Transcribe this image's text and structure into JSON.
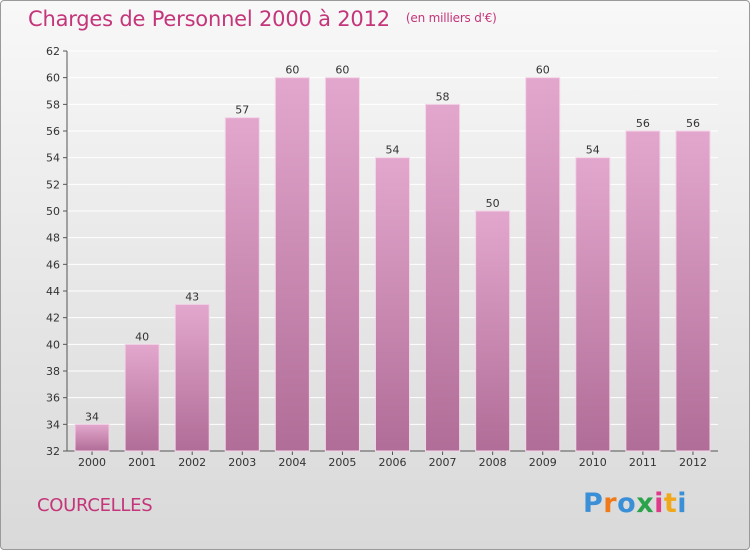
{
  "header": {
    "title": "Charges de Personnel 2000 à 2012",
    "subtitle": "(en milliers d'€)"
  },
  "commune": "COURCELLES",
  "logo": {
    "text": "Proxiti",
    "colors": [
      "#3a8fd6",
      "#f07a1a",
      "#3a8fd6",
      "#2aa34a",
      "#e03a8a",
      "#f0a81a",
      "#3a8fd6"
    ]
  },
  "colors": {
    "accent": "#c4357a",
    "bar_top": "#e3a7cd",
    "bar_bottom": "#b06d97",
    "grid": "#ffffff"
  },
  "chart_data": {
    "type": "bar",
    "title": "Charges de Personnel 2000 à 2012",
    "subtitle": "(en milliers d'€)",
    "categories": [
      "2000",
      "2001",
      "2002",
      "2003",
      "2004",
      "2005",
      "2006",
      "2007",
      "2008",
      "2009",
      "2010",
      "2011",
      "2012"
    ],
    "values": [
      34,
      40,
      43,
      57,
      60,
      60,
      54,
      58,
      50,
      60,
      54,
      56,
      56
    ],
    "xlabel": "",
    "ylabel": "",
    "ylim": [
      32,
      62
    ],
    "yticks": [
      32,
      34,
      36,
      38,
      40,
      42,
      44,
      46,
      48,
      50,
      52,
      54,
      56,
      58,
      60,
      62
    ],
    "grid": true,
    "data_labels": true
  }
}
